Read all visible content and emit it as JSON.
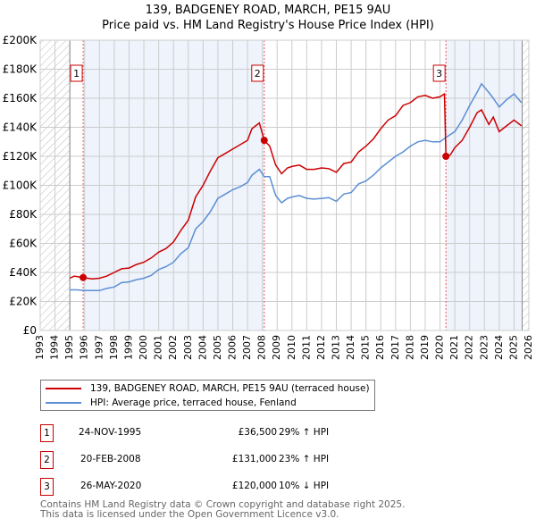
{
  "title": "139, BADGENEY ROAD, MARCH, PE15 9AU",
  "subtitle": "Price paid vs. HM Land Registry's House Price Index (HPI)",
  "chart_data": {
    "type": "line",
    "title": "139, BADGENEY ROAD, MARCH, PE15 9AU",
    "subtitle": "Price paid vs. HM Land Registry's House Price Index (HPI)",
    "xlim": [
      1993,
      2026
    ],
    "ylim": [
      0,
      200000
    ],
    "xticks": [
      "1993",
      "1994",
      "1995",
      "1996",
      "1997",
      "1998",
      "1999",
      "2000",
      "2001",
      "2002",
      "2003",
      "2004",
      "2005",
      "2006",
      "2007",
      "2008",
      "2009",
      "2010",
      "2011",
      "2012",
      "2013",
      "2014",
      "2015",
      "2016",
      "2017",
      "2018",
      "2019",
      "2020",
      "2021",
      "2022",
      "2023",
      "2024",
      "2025",
      "2026"
    ],
    "yticks": [
      {
        "v": 0,
        "label": "£0"
      },
      {
        "v": 20000,
        "label": "£20K"
      },
      {
        "v": 40000,
        "label": "£40K"
      },
      {
        "v": 60000,
        "label": "£60K"
      },
      {
        "v": 80000,
        "label": "£80K"
      },
      {
        "v": 100000,
        "label": "£100K"
      },
      {
        "v": 120000,
        "label": "£120K"
      },
      {
        "v": 140000,
        "label": "£140K"
      },
      {
        "v": 160000,
        "label": "£160K"
      },
      {
        "v": 180000,
        "label": "£180K"
      },
      {
        "v": 200000,
        "label": "£200K"
      }
    ],
    "grid": true,
    "legend_placement": "bottom",
    "series": [
      {
        "name": "139, BADGENEY ROAD, MARCH, PE15 9AU (terraced house)",
        "color": "#cc0000",
        "points": [
          [
            1995,
            36000
          ],
          [
            1995.3,
            37500
          ],
          [
            1995.9,
            36500
          ],
          [
            1996.5,
            35500
          ],
          [
            1997,
            36000
          ],
          [
            1997.5,
            37500
          ],
          [
            1998,
            40000
          ],
          [
            1998.5,
            42500
          ],
          [
            1999,
            43000
          ],
          [
            1999.5,
            45500
          ],
          [
            2000,
            47000
          ],
          [
            2000.5,
            50000
          ],
          [
            2001,
            54000
          ],
          [
            2001.5,
            56500
          ],
          [
            2002,
            61000
          ],
          [
            2002.5,
            69000
          ],
          [
            2003,
            76000
          ],
          [
            2003.5,
            92000
          ],
          [
            2004,
            100000
          ],
          [
            2004.5,
            110000
          ],
          [
            2005,
            119000
          ],
          [
            2005.5,
            122000
          ],
          [
            2006,
            125000
          ],
          [
            2006.5,
            128000
          ],
          [
            2007,
            131000
          ],
          [
            2007.3,
            139000
          ],
          [
            2007.8,
            143000
          ],
          [
            2008.13,
            131000
          ],
          [
            2008.5,
            127000
          ],
          [
            2008.9,
            114000
          ],
          [
            2009.3,
            108000
          ],
          [
            2009.7,
            112000
          ],
          [
            2010,
            113000
          ],
          [
            2010.5,
            114000
          ],
          [
            2011,
            111000
          ],
          [
            2011.5,
            111000
          ],
          [
            2012,
            112000
          ],
          [
            2012.5,
            111500
          ],
          [
            2013,
            109000
          ],
          [
            2013.5,
            115000
          ],
          [
            2014,
            116000
          ],
          [
            2014.5,
            123000
          ],
          [
            2015,
            127000
          ],
          [
            2015.5,
            132000
          ],
          [
            2016,
            139000
          ],
          [
            2016.5,
            145000
          ],
          [
            2017,
            148000
          ],
          [
            2017.5,
            155000
          ],
          [
            2018,
            157000
          ],
          [
            2018.5,
            161000
          ],
          [
            2019,
            162000
          ],
          [
            2019.5,
            160000
          ],
          [
            2020,
            161000
          ],
          [
            2020.3,
            163000
          ],
          [
            2020.4,
            120000
          ],
          [
            2020.7,
            121000
          ],
          [
            2021,
            126000
          ],
          [
            2021.5,
            131000
          ],
          [
            2022,
            140000
          ],
          [
            2022.5,
            150000
          ],
          [
            2022.8,
            152000
          ],
          [
            2023.3,
            142000
          ],
          [
            2023.6,
            147000
          ],
          [
            2024,
            137000
          ],
          [
            2024.5,
            141000
          ],
          [
            2025,
            145000
          ],
          [
            2025.5,
            141000
          ]
        ]
      },
      {
        "name": "HPI: Average price, terraced house, Fenland",
        "color": "#5b8fd4",
        "points": [
          [
            1995,
            28000
          ],
          [
            1995.5,
            28000
          ],
          [
            1996,
            27500
          ],
          [
            1996.5,
            27500
          ],
          [
            1997,
            27500
          ],
          [
            1997.5,
            29000
          ],
          [
            1998,
            30000
          ],
          [
            1998.5,
            33000
          ],
          [
            1999,
            33500
          ],
          [
            1999.5,
            35000
          ],
          [
            2000,
            36000
          ],
          [
            2000.5,
            38000
          ],
          [
            2001,
            42000
          ],
          [
            2001.5,
            44000
          ],
          [
            2002,
            47000
          ],
          [
            2002.5,
            53000
          ],
          [
            2003,
            57000
          ],
          [
            2003.5,
            70000
          ],
          [
            2004,
            75000
          ],
          [
            2004.5,
            82000
          ],
          [
            2005,
            91000
          ],
          [
            2005.5,
            94000
          ],
          [
            2006,
            97000
          ],
          [
            2006.5,
            99000
          ],
          [
            2007,
            102000
          ],
          [
            2007.3,
            107000
          ],
          [
            2007.8,
            111000
          ],
          [
            2008.13,
            106000
          ],
          [
            2008.5,
            106000
          ],
          [
            2008.9,
            93000
          ],
          [
            2009.3,
            88000
          ],
          [
            2009.7,
            91000
          ],
          [
            2010,
            92000
          ],
          [
            2010.5,
            93000
          ],
          [
            2011,
            91000
          ],
          [
            2011.5,
            90500
          ],
          [
            2012,
            91000
          ],
          [
            2012.5,
            91500
          ],
          [
            2013,
            89000
          ],
          [
            2013.5,
            94000
          ],
          [
            2014,
            95000
          ],
          [
            2014.5,
            101000
          ],
          [
            2015,
            103000
          ],
          [
            2015.5,
            107000
          ],
          [
            2016,
            112000
          ],
          [
            2016.5,
            116000
          ],
          [
            2017,
            120000
          ],
          [
            2017.5,
            123000
          ],
          [
            2018,
            127000
          ],
          [
            2018.5,
            130000
          ],
          [
            2019,
            131000
          ],
          [
            2019.5,
            130000
          ],
          [
            2020,
            130000
          ],
          [
            2020.4,
            133000
          ],
          [
            2020.7,
            135000
          ],
          [
            2021,
            137000
          ],
          [
            2021.5,
            145000
          ],
          [
            2022,
            155000
          ],
          [
            2022.5,
            164000
          ],
          [
            2022.8,
            170000
          ],
          [
            2023.3,
            164000
          ],
          [
            2023.6,
            160000
          ],
          [
            2024,
            154000
          ],
          [
            2024.5,
            159000
          ],
          [
            2025,
            163000
          ],
          [
            2025.5,
            157000
          ]
        ]
      }
    ],
    "sales": [
      {
        "label": "1",
        "x": 1995.9,
        "y": 36500
      },
      {
        "label": "2",
        "x": 2008.13,
        "y": 131000
      },
      {
        "label": "3",
        "x": 2020.4,
        "y": 120000
      }
    ],
    "hatched_ranges": [
      [
        1993,
        1995
      ],
      [
        2025.55,
        2026
      ]
    ],
    "shaded_ranges": [
      [
        1995.9,
        2008.13
      ],
      [
        2020.4,
        2025.55
      ]
    ]
  },
  "legend": [
    {
      "label": "139, BADGENEY ROAD, MARCH, PE15 9AU (terraced house)",
      "color": "#cc0000"
    },
    {
      "label": "HPI: Average price, terraced house, Fenland",
      "color": "#5b8fd4"
    }
  ],
  "transactions": [
    {
      "num": "1",
      "date": "24-NOV-1995",
      "price": "£36,500",
      "hpi": "29% ↑ HPI"
    },
    {
      "num": "2",
      "date": "20-FEB-2008",
      "price": "£131,000",
      "hpi": "23% ↑ HPI"
    },
    {
      "num": "3",
      "date": "26-MAY-2020",
      "price": "£120,000",
      "hpi": "10% ↓ HPI"
    }
  ],
  "footer": [
    "Contains HM Land Registry data © Crown copyright and database right 2025.",
    "This data is licensed under the Open Government Licence v3.0."
  ]
}
